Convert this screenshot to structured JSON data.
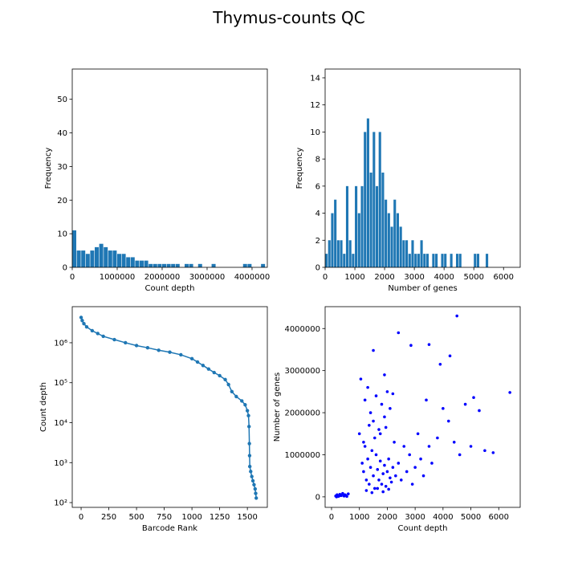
{
  "title": "Thymus-counts QC",
  "chart_data": [
    {
      "type": "histogram",
      "xlabel": "Count depth",
      "ylabel": "Frequency",
      "color": "#1f77b4",
      "bins": [
        0,
        100000,
        200000,
        300000,
        400000,
        500000,
        600000,
        700000,
        800000,
        900000,
        1000000,
        1100000,
        1200000,
        1300000,
        1400000,
        1500000,
        1600000,
        1700000,
        1800000,
        1900000,
        2000000,
        2100000,
        2200000,
        2300000,
        2400000,
        2500000,
        2600000,
        2700000,
        2800000,
        2900000,
        3000000,
        3100000,
        3200000,
        3300000,
        3400000,
        3500000,
        3600000,
        3700000,
        3800000,
        3900000,
        4000000,
        4100000,
        4200000,
        4300000
      ],
      "values": [
        11,
        5,
        5,
        4,
        5,
        6,
        7,
        6,
        5,
        5,
        4,
        4,
        3,
        3,
        2,
        2,
        2,
        1,
        1,
        1,
        1,
        1,
        1,
        1,
        0,
        1,
        1,
        0,
        1,
        0,
        0,
        1,
        0,
        0,
        0,
        0,
        0,
        0,
        1,
        1,
        0,
        0,
        1
      ],
      "xlim": [
        0,
        4340000
      ],
      "xticks": [
        0,
        1000000,
        2000000,
        3000000,
        4000000
      ],
      "ylim": [
        0,
        59
      ],
      "yticks": [
        0,
        10,
        20,
        30,
        40,
        50
      ]
    },
    {
      "type": "histogram",
      "xlabel": "Number of genes",
      "ylabel": "Frequency",
      "color": "#1f77b4",
      "bins": [
        0,
        100,
        200,
        300,
        400,
        500,
        600,
        700,
        800,
        900,
        1000,
        1100,
        1200,
        1300,
        1400,
        1500,
        1600,
        1700,
        1800,
        1900,
        2000,
        2100,
        2200,
        2300,
        2400,
        2500,
        2600,
        2700,
        2800,
        2900,
        3000,
        3100,
        3200,
        3300,
        3400,
        3500,
        3600,
        3700,
        3800,
        3900,
        4000,
        4100,
        4200,
        4300,
        4400,
        4500,
        4600,
        4700,
        4800,
        4900,
        5000,
        5100,
        5200,
        5300,
        5400,
        5500,
        5600,
        5700,
        5800,
        5900,
        6000,
        6100,
        6200,
        6300,
        6400
      ],
      "values": [
        1,
        2,
        4,
        5,
        2,
        2,
        1,
        6,
        2,
        1,
        6,
        4,
        6,
        10,
        11,
        7,
        10,
        6,
        10,
        7,
        5,
        4,
        3,
        5,
        4,
        3,
        2,
        2,
        1,
        2,
        1,
        1,
        2,
        1,
        1,
        0,
        1,
        1,
        0,
        1,
        1,
        0,
        1,
        0,
        1,
        1,
        0,
        0,
        0,
        0,
        1,
        1,
        0,
        0,
        1,
        0,
        0,
        0,
        0,
        0,
        0,
        0,
        0,
        0
      ],
      "xlim": [
        0,
        6560
      ],
      "xticks": [
        0,
        1000,
        2000,
        3000,
        4000,
        5000,
        6000
      ],
      "ylim": [
        0,
        14.65
      ],
      "yticks": [
        0,
        2,
        4,
        6,
        8,
        10,
        12,
        14
      ]
    },
    {
      "type": "line",
      "xlabel": "Barcode Rank",
      "ylabel": "Count depth",
      "color": "#1f77b4",
      "yscale": "log",
      "x": [
        0,
        10,
        25,
        50,
        100,
        150,
        200,
        300,
        400,
        500,
        600,
        700,
        800,
        900,
        1000,
        1050,
        1100,
        1150,
        1200,
        1250,
        1300,
        1330,
        1360,
        1400,
        1450,
        1480,
        1500,
        1510,
        1515,
        1518,
        1520,
        1522,
        1530,
        1540,
        1550,
        1560,
        1570,
        1575,
        1580
      ],
      "values": [
        4300000,
        3600000,
        3000000,
        2500000,
        2000000,
        1700000,
        1450000,
        1200000,
        1000000,
        850000,
        750000,
        650000,
        580000,
        500000,
        400000,
        330000,
        270000,
        220000,
        180000,
        150000,
        120000,
        90000,
        60000,
        45000,
        35000,
        28000,
        20000,
        15000,
        8000,
        3000,
        1500,
        800,
        600,
        450,
        350,
        280,
        220,
        170,
        130
      ],
      "xlim": [
        -80,
        1680
      ],
      "xticks": [
        0,
        250,
        500,
        750,
        1000,
        1250,
        1500
      ],
      "ylim": [
        76,
        8000000
      ],
      "yticks": [
        {
          "value": 100,
          "label": "10²"
        },
        {
          "value": 1000,
          "label": "10³"
        },
        {
          "value": 10000,
          "label": "10⁴"
        },
        {
          "value": 100000,
          "label": "10⁵"
        },
        {
          "value": 1000000,
          "label": "10⁶"
        }
      ]
    },
    {
      "type": "scatter",
      "xlabel": "Count depth",
      "ylabel": "Number of genes",
      "color": "#0000ff",
      "x": [
        150,
        200,
        250,
        300,
        350,
        400,
        450,
        500,
        550,
        600,
        180,
        320,
        480,
        1000,
        1100,
        1150,
        1200,
        1250,
        1300,
        1350,
        1400,
        1450,
        1500,
        1550,
        1600,
        1650,
        1700,
        1750,
        1800,
        1850,
        1900,
        1950,
        2000,
        2050,
        2100,
        2150,
        2200,
        2250,
        2300,
        2400,
        2500,
        2600,
        2700,
        2800,
        2900,
        3000,
        3100,
        3200,
        3300,
        3400,
        3500,
        3600,
        3800,
        4000,
        4200,
        4400,
        4600,
        4800,
        5000,
        5500,
        5800,
        1200,
        1300,
        1400,
        1500,
        1600,
        1700,
        1800,
        1900,
        2000,
        2100,
        1250,
        1450,
        1650,
        1850,
        2050,
        1150,
        1350,
        1550,
        1750,
        1950,
        4500,
        2400,
        6400,
        1500,
        2850,
        3500,
        4250,
        3900,
        5300,
        5100,
        1050,
        1900,
        2200
      ],
      "values": [
        20000,
        50000,
        10000,
        60000,
        30000,
        80000,
        20000,
        40000,
        10000,
        70000,
        0,
        30000,
        50000,
        1500000,
        800000,
        600000,
        1200000,
        400000,
        900000,
        300000,
        700000,
        1100000,
        500000,
        200000,
        1000000,
        650000,
        400000,
        850000,
        300000,
        550000,
        750000,
        250000,
        600000,
        900000,
        450000,
        350000,
        700000,
        1300000,
        500000,
        800000,
        400000,
        1200000,
        600000,
        1000000,
        300000,
        700000,
        1500000,
        900000,
        500000,
        2300000,
        1200000,
        800000,
        1400000,
        2100000,
        1800000,
        1300000,
        1000000,
        2200000,
        1200000,
        1100000,
        1050000,
        2300000,
        2600000,
        2000000,
        1800000,
        2400000,
        1600000,
        2200000,
        1900000,
        2500000,
        2100000,
        150000,
        100000,
        200000,
        120000,
        180000,
        1300000,
        1700000,
        1400000,
        1500000,
        1650000,
        4300000,
        3900000,
        2480000,
        3480000,
        3600000,
        3620000,
        3350000,
        3150000,
        2050000,
        2360000,
        2800000,
        2900000,
        2450000
      ],
      "xlim": [
        -230,
        6770
      ],
      "xticks": [
        0,
        1000,
        2000,
        3000,
        4000,
        5000,
        6000
      ],
      "ylim": [
        -250000,
        4520000
      ],
      "yticks": [
        0,
        1000000,
        2000000,
        3000000,
        4000000
      ]
    }
  ]
}
